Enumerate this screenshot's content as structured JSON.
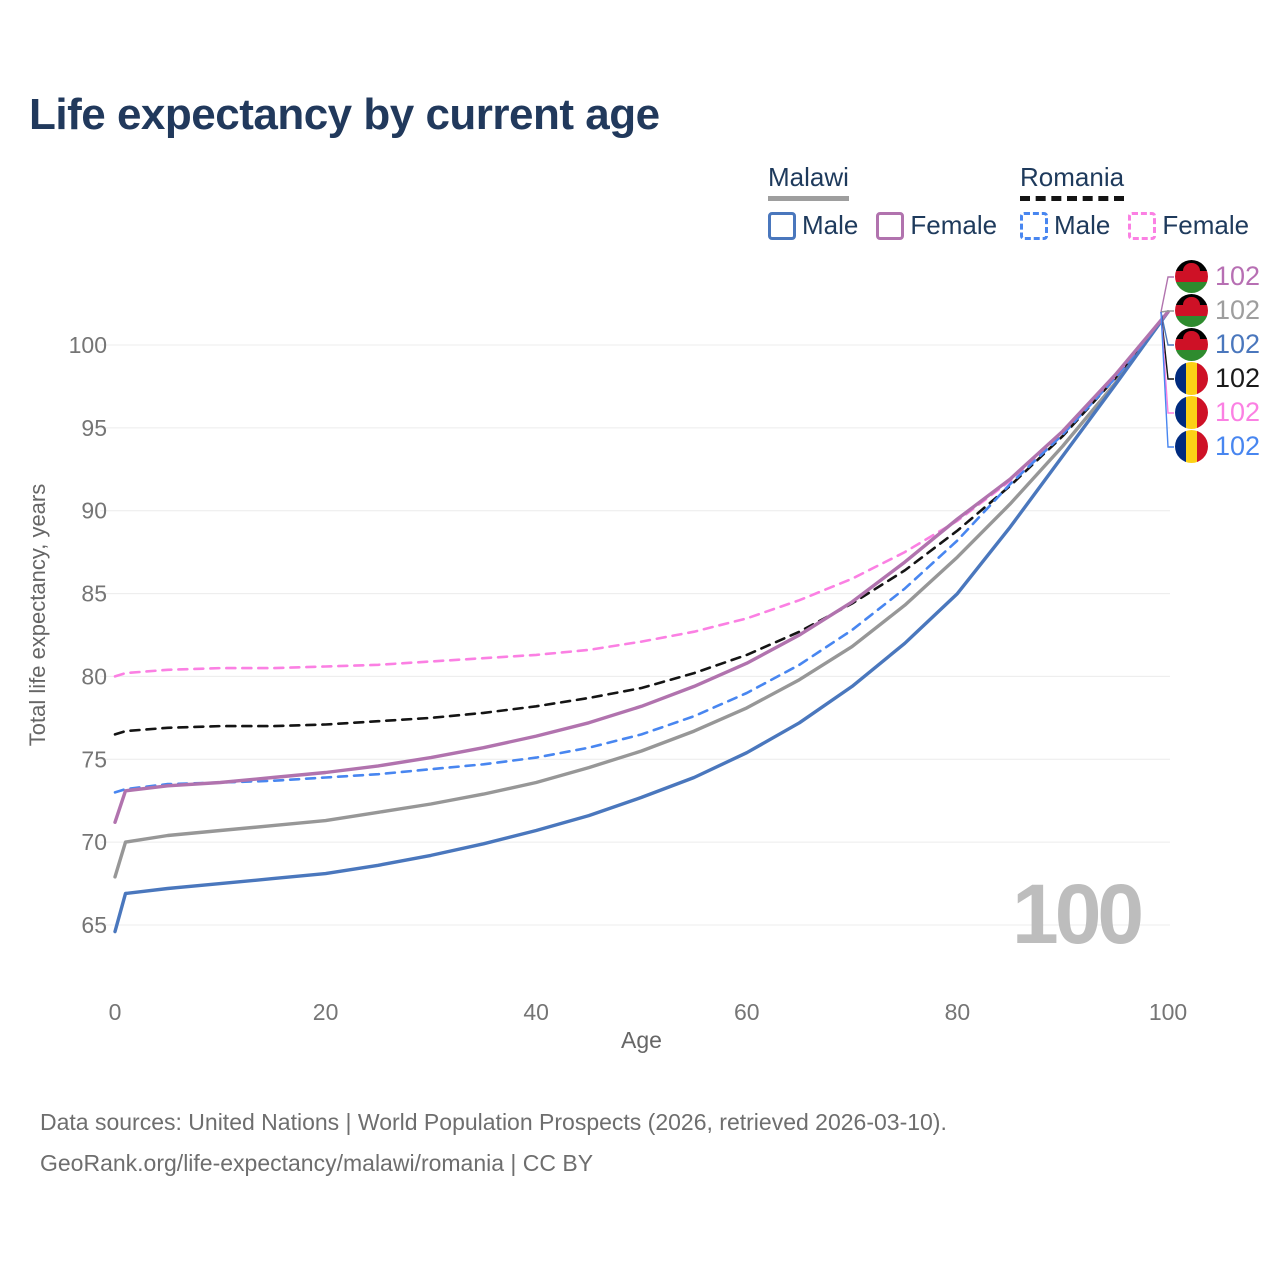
{
  "page": {
    "title": "Life expectancy by current age"
  },
  "legend": {
    "groups": [
      {
        "country": "Malawi",
        "line_style": "solid",
        "underline_color": "#9e9e9e",
        "items": [
          {
            "label": "Male",
            "color": "#4a77bd"
          },
          {
            "label": "Female",
            "color": "#b173ae"
          }
        ]
      },
      {
        "country": "Romania",
        "line_style": "dashed",
        "underline_color": "#141414",
        "items": [
          {
            "label": "Male",
            "color": "#4886f0"
          },
          {
            "label": "Female",
            "color": "#fb80e3"
          }
        ]
      }
    ]
  },
  "chart_data": {
    "type": "line",
    "title": "Life expectancy by current age",
    "xlabel": "Age",
    "ylabel": "Total life expectancy, years",
    "xticks": [
      0,
      20,
      40,
      60,
      80,
      100
    ],
    "yticks": [
      65,
      70,
      75,
      80,
      85,
      90,
      95,
      100
    ],
    "xlim": [
      0,
      100
    ],
    "ylim": [
      63,
      103
    ],
    "grid": true,
    "legend_position": "top-right",
    "age_counter_watermark": "100",
    "ages": [
      0,
      1,
      5,
      10,
      15,
      20,
      25,
      30,
      35,
      40,
      45,
      50,
      55,
      60,
      65,
      70,
      75,
      80,
      85,
      90,
      95,
      100
    ],
    "series": [
      {
        "id": "malawi-all",
        "country": "Malawi",
        "sex": "All",
        "flag": "malawi",
        "color": "#979797",
        "dashed": false,
        "label_row": 1,
        "end_label": "102",
        "end_label_color": "#9e9e9e",
        "values": [
          67.9,
          70.0,
          70.4,
          70.7,
          71.0,
          71.3,
          71.8,
          72.3,
          72.9,
          73.6,
          74.5,
          75.5,
          76.7,
          78.1,
          79.8,
          81.8,
          84.3,
          87.2,
          90.4,
          93.9,
          97.7,
          102
        ]
      },
      {
        "id": "romania-all",
        "country": "Romania",
        "sex": "All",
        "flag": "romania",
        "color": "#141414",
        "dashed": true,
        "label_row": 3,
        "end_label": "102",
        "end_label_color": "#1a1a1a",
        "values": [
          76.5,
          76.7,
          76.9,
          77.0,
          77.0,
          77.1,
          77.3,
          77.5,
          77.8,
          78.2,
          78.7,
          79.3,
          80.2,
          81.3,
          82.7,
          84.4,
          86.4,
          88.8,
          91.5,
          94.5,
          98.0,
          102
        ]
      },
      {
        "id": "romania-female",
        "country": "Romania",
        "sex": "Female",
        "flag": "romania",
        "color": "#fb80e3",
        "dashed": true,
        "label_row": 4,
        "end_label": "102",
        "end_label_color": "#fb80e3",
        "values": [
          80.0,
          80.2,
          80.4,
          80.5,
          80.5,
          80.6,
          80.7,
          80.9,
          81.1,
          81.3,
          81.6,
          82.1,
          82.7,
          83.5,
          84.6,
          85.9,
          87.5,
          89.4,
          91.8,
          94.8,
          98.1,
          102
        ]
      },
      {
        "id": "malawi-male",
        "country": "Malawi",
        "sex": "Male",
        "flag": "malawi",
        "color": "#4a77bd",
        "dashed": false,
        "label_row": 2,
        "end_label": "102",
        "end_label_color": "#4a77bd",
        "values": [
          64.6,
          66.9,
          67.2,
          67.5,
          67.8,
          68.1,
          68.6,
          69.2,
          69.9,
          70.7,
          71.6,
          72.7,
          73.9,
          75.4,
          77.2,
          79.4,
          82.0,
          85.0,
          89.0,
          93.3,
          97.6,
          102
        ]
      },
      {
        "id": "romania-male",
        "country": "Romania",
        "sex": "Male",
        "flag": "romania",
        "color": "#4886f0",
        "dashed": true,
        "label_row": 5,
        "end_label": "102",
        "end_label_color": "#4886f0",
        "values": [
          73.0,
          73.2,
          73.5,
          73.6,
          73.7,
          73.9,
          74.1,
          74.4,
          74.7,
          75.1,
          75.7,
          76.5,
          77.6,
          79.0,
          80.7,
          82.8,
          85.3,
          88.2,
          91.6,
          94.6,
          98.0,
          102
        ]
      },
      {
        "id": "malawi-female",
        "country": "Malawi",
        "sex": "Female",
        "flag": "malawi",
        "color": "#b173ae",
        "dashed": false,
        "label_row": 0,
        "end_label": "102",
        "end_label_color": "#b76fb3",
        "values": [
          71.2,
          73.1,
          73.4,
          73.6,
          73.9,
          74.2,
          74.6,
          75.1,
          75.7,
          76.4,
          77.2,
          78.2,
          79.4,
          80.8,
          82.5,
          84.5,
          86.9,
          89.5,
          91.9,
          94.8,
          98.2,
          102
        ]
      }
    ]
  },
  "footer": {
    "line1": "Data sources: United Nations | World Population Prospects (2026, retrieved 2026-03-10).",
    "line2": "GeoRank.org/life-expectancy/malawi/romania | CC BY"
  }
}
